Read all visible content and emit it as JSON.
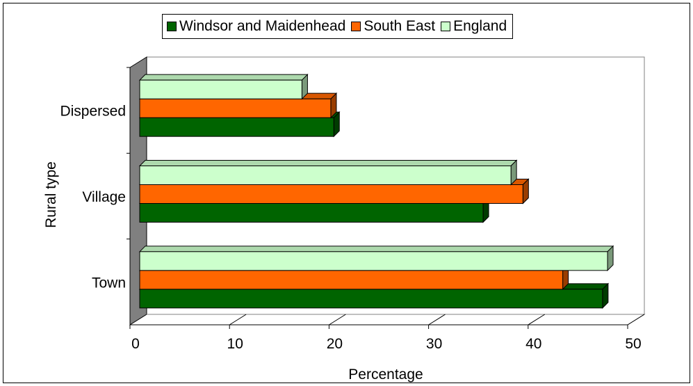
{
  "chart_data": {
    "type": "bar",
    "orientation": "horizontal",
    "categories": [
      "Town",
      "Village",
      "Dispersed"
    ],
    "series": [
      {
        "name": "Windsor and Maidenhead",
        "values": [
          46.5,
          34.5,
          19.5
        ],
        "color": "#006400"
      },
      {
        "name": "South East",
        "values": [
          42.5,
          38.5,
          19.2
        ],
        "color": "#FF6600"
      },
      {
        "name": "England",
        "values": [
          47.0,
          37.3,
          16.3
        ],
        "color": "#CCFFCC"
      }
    ],
    "xlabel": "Percentage",
    "ylabel": "Rural type",
    "xlim": [
      0,
      50
    ],
    "xticks": [
      "0",
      "10",
      "20",
      "30",
      "40",
      "50"
    ],
    "grid": true,
    "legend_position": "top",
    "three_d": true
  }
}
